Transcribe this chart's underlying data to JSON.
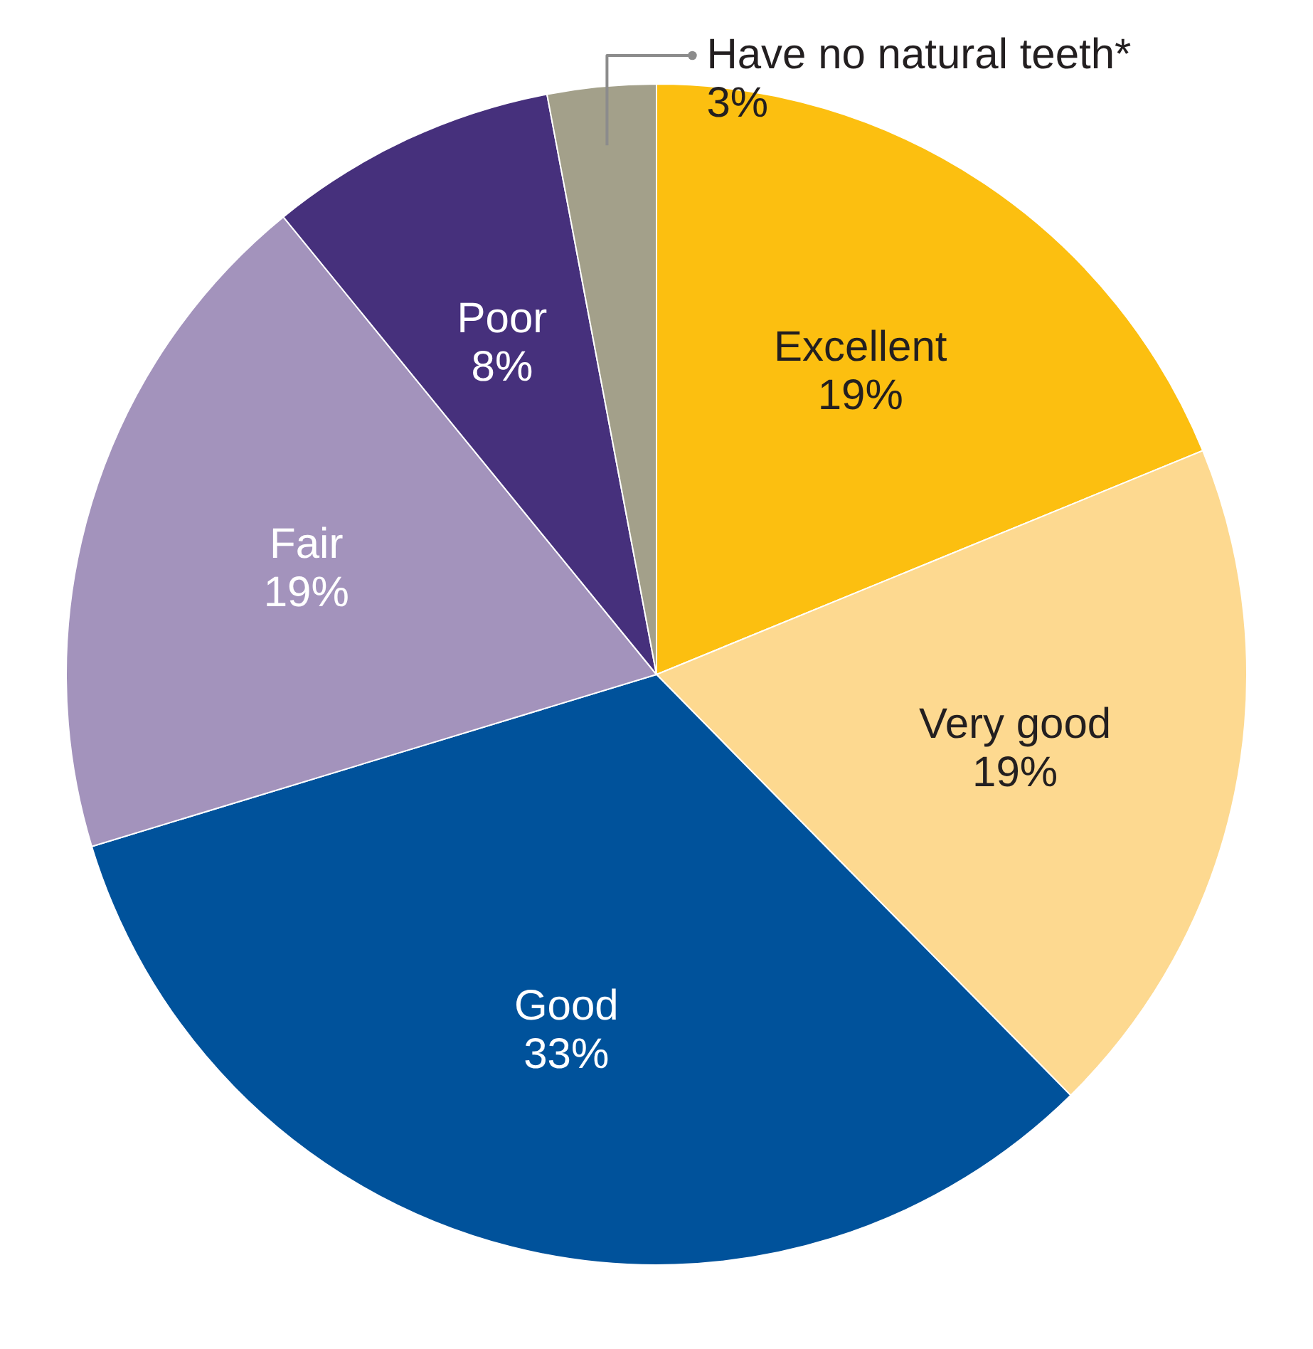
{
  "chart_data": {
    "type": "pie",
    "categories": [
      "Excellent",
      "Very good",
      "Good",
      "Fair",
      "Poor",
      "Have no natural teeth*"
    ],
    "values": [
      19,
      19,
      33,
      19,
      8,
      3
    ],
    "colors": [
      "#fcbf10",
      "#fdd990",
      "#00529b",
      "#a393bc",
      "#46307c",
      "#a3a08a"
    ],
    "value_labels": [
      "19%",
      "19%",
      "33%",
      "19%",
      "8%",
      "3%"
    ],
    "legend": false
  }
}
